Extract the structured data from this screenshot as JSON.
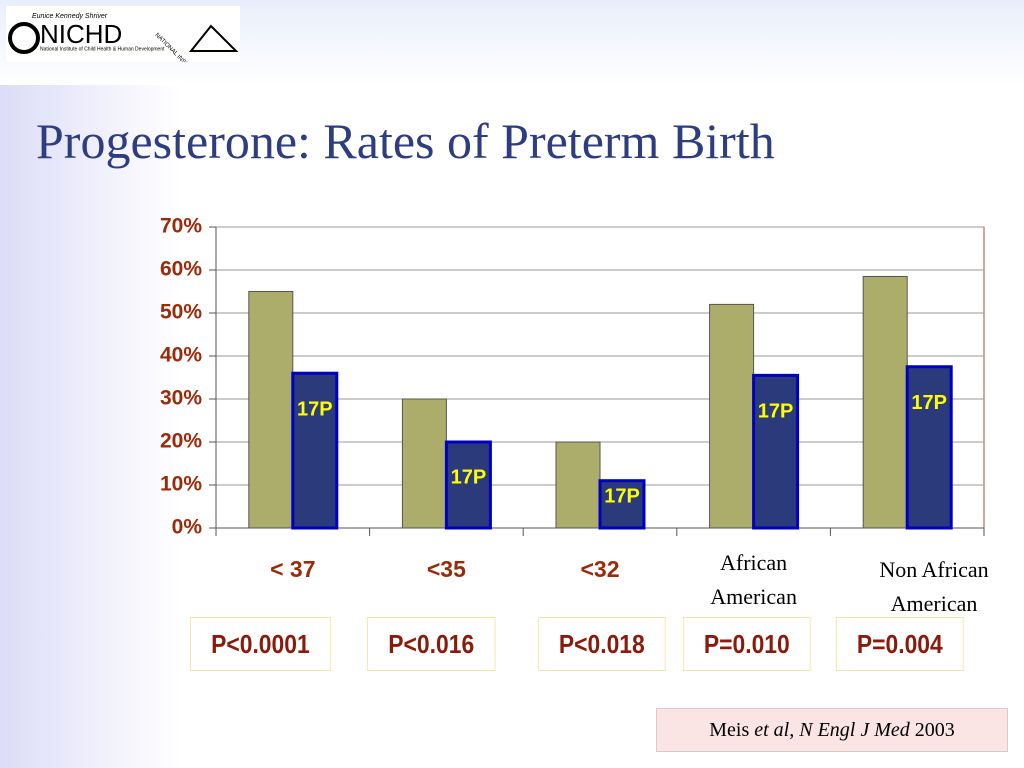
{
  "header": {
    "logo": {
      "tagline": "Eunice Kennedy Shriver",
      "name": "NICHD",
      "subtitle": "National Institute of Child Health & Human Development",
      "nih": "NATIONAL INSTITUTES OF HEALTH"
    }
  },
  "chart_data": {
    "type": "bar",
    "title": "Progesterone: Rates of Preterm Birth",
    "categories": [
      "< 37",
      "<35",
      "<32",
      "African American",
      "Non African American"
    ],
    "series": [
      {
        "color": "#adad6b",
        "values": [
          55,
          30,
          20,
          52,
          58.5
        ]
      },
      {
        "name": "17P",
        "color": "#2b3a7a",
        "values": [
          36,
          20,
          11,
          35.5,
          37.5
        ]
      }
    ],
    "ylim": [
      0,
      70
    ],
    "yticks": [
      {
        "value": 0,
        "label": "0%"
      },
      {
        "value": 10,
        "label": "10%"
      },
      {
        "value": 20,
        "label": "20%"
      },
      {
        "value": 30,
        "label": "30%"
      },
      {
        "value": 40,
        "label": "40%"
      },
      {
        "value": 50,
        "label": "50%"
      },
      {
        "value": 60,
        "label": "60%"
      },
      {
        "value": 70,
        "label": "70%"
      }
    ],
    "grid": true
  },
  "p_values": [
    "P<0.0001",
    "P<0.016",
    "P<0.018",
    "P=0.010",
    "P=0.004"
  ],
  "citation": {
    "author": "Meis",
    "etal": "et al,",
    "journal": "N Engl J Med",
    "year": "2003"
  }
}
